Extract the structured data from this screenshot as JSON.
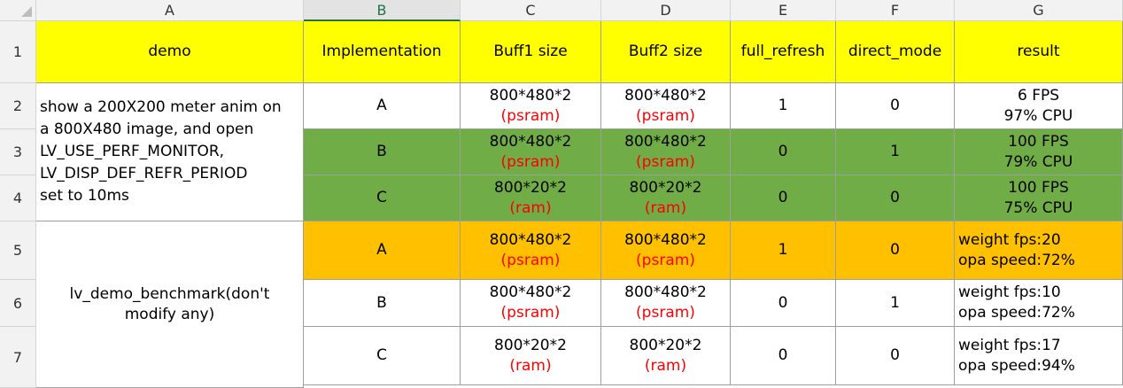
{
  "columns": [
    "A",
    "B",
    "C",
    "D",
    "E",
    "F",
    "G"
  ],
  "rows": [
    "1",
    "2",
    "3",
    "4",
    "5",
    "6",
    "7"
  ],
  "header_row": [
    "demo",
    "Implementation",
    "Buff1 size",
    "Buff2 size",
    "full_refresh",
    "direct_mode",
    "result"
  ],
  "group1": {
    "description_lines": [
      "show a 200X200 meter anim on",
      "a 800X480 image, and open",
      "LV_USE_PERF_MONITOR,",
      "LV_DISP_DEF_REFR_PERIOD",
      "set to 10ms"
    ],
    "rows": [
      {
        "impl": "A",
        "buff1": "800*480*2",
        "buff1_mem": "(psram)",
        "buff2": "800*480*2",
        "buff2_mem": "(psram)",
        "full_refresh": "1",
        "direct_mode": "0",
        "result_line1": "6 FPS",
        "result_line2": "97% CPU"
      },
      {
        "impl": "B",
        "buff1": "800*480*2",
        "buff1_mem": "(psram)",
        "buff2": "800*480*2",
        "buff2_mem": "(psram)",
        "full_refresh": "0",
        "direct_mode": "1",
        "result_line1": "100 FPS",
        "result_line2": "79% CPU"
      },
      {
        "impl": "C",
        "buff1": "800*20*2",
        "buff1_mem": "(ram)",
        "buff2": "800*20*2",
        "buff2_mem": "(ram)",
        "full_refresh": "0",
        "direct_mode": "0",
        "result_line1": "100 FPS",
        "result_line2": "75% CPU"
      }
    ]
  },
  "group2": {
    "description_lines": [
      "lv_demo_benchmark(don't",
      "modify any)"
    ],
    "rows": [
      {
        "impl": "A",
        "buff1": "800*480*2",
        "buff1_mem": "(psram)",
        "buff2": "800*480*2",
        "buff2_mem": "(psram)",
        "full_refresh": "1",
        "direct_mode": "0",
        "result_line1": "weight fps:20",
        "result_line2": "opa speed:72%"
      },
      {
        "impl": "B",
        "buff1": "800*480*2",
        "buff1_mem": "(psram)",
        "buff2": "800*480*2",
        "buff2_mem": "(psram)",
        "full_refresh": "0",
        "direct_mode": "1",
        "result_line1": "weight fps:10",
        "result_line2": "opa speed:72%"
      },
      {
        "impl": "C",
        "buff1": "800*20*2",
        "buff1_mem": "(ram)",
        "buff2": "800*20*2",
        "buff2_mem": "(ram)",
        "full_refresh": "0",
        "direct_mode": "0",
        "result_line1": "weight fps:17",
        "result_line2": "opa speed:94%"
      }
    ]
  },
  "colors": {
    "header_fill": "#ffff00",
    "green_fill": "#70ad47",
    "orange_fill": "#ffc000",
    "memory_text": "#ff0000",
    "selected_column": "#217346"
  }
}
